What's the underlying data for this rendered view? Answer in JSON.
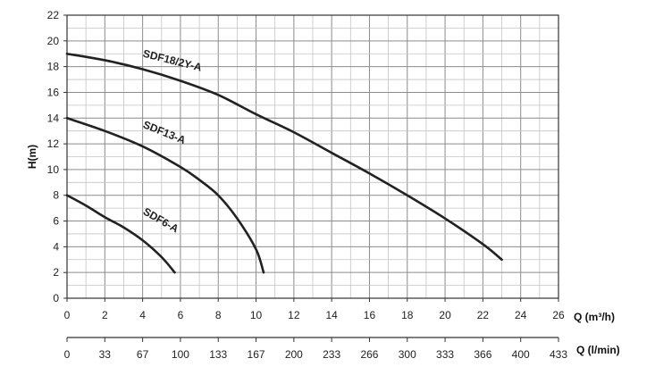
{
  "chart_data": {
    "type": "line",
    "title": "",
    "xlabel": "Q (m³/h)",
    "x2label": "Q (l/min)",
    "ylabel": "H(m)",
    "xlim": [
      0,
      26
    ],
    "ylim": [
      0,
      22
    ],
    "grid": true,
    "x_ticks": [
      "0",
      "2",
      "4",
      "6",
      "8",
      "10",
      "12",
      "14",
      "16",
      "18",
      "20",
      "22",
      "24",
      "26"
    ],
    "y_ticks": [
      "0",
      "2",
      "4",
      "6",
      "8",
      "10",
      "12",
      "14",
      "16",
      "18",
      "20",
      "22"
    ],
    "x2_ticks": [
      "0",
      "33",
      "67",
      "100",
      "133",
      "167",
      "200",
      "233",
      "266",
      "300",
      "333",
      "366",
      "400",
      "433"
    ],
    "series": [
      {
        "name": "SDF18/2Y-A",
        "x": [
          0,
          2,
          4,
          6,
          8,
          10,
          12,
          14,
          16,
          18,
          20,
          22,
          23
        ],
        "y": [
          19,
          18.5,
          17.8,
          16.9,
          15.8,
          14.3,
          12.9,
          11.3,
          9.7,
          8,
          6.2,
          4.2,
          3
        ]
      },
      {
        "name": "SDF13-A",
        "x": [
          0,
          2,
          4,
          6,
          7,
          8,
          9,
          10,
          10.4
        ],
        "y": [
          14,
          13,
          11.8,
          10.2,
          9.2,
          8,
          6.2,
          3.8,
          2
        ]
      },
      {
        "name": "SDF6-A",
        "x": [
          0,
          1,
          2,
          3,
          4,
          5,
          5.7
        ],
        "y": [
          8,
          7.2,
          6.3,
          5.5,
          4.5,
          3.2,
          2
        ]
      }
    ]
  }
}
